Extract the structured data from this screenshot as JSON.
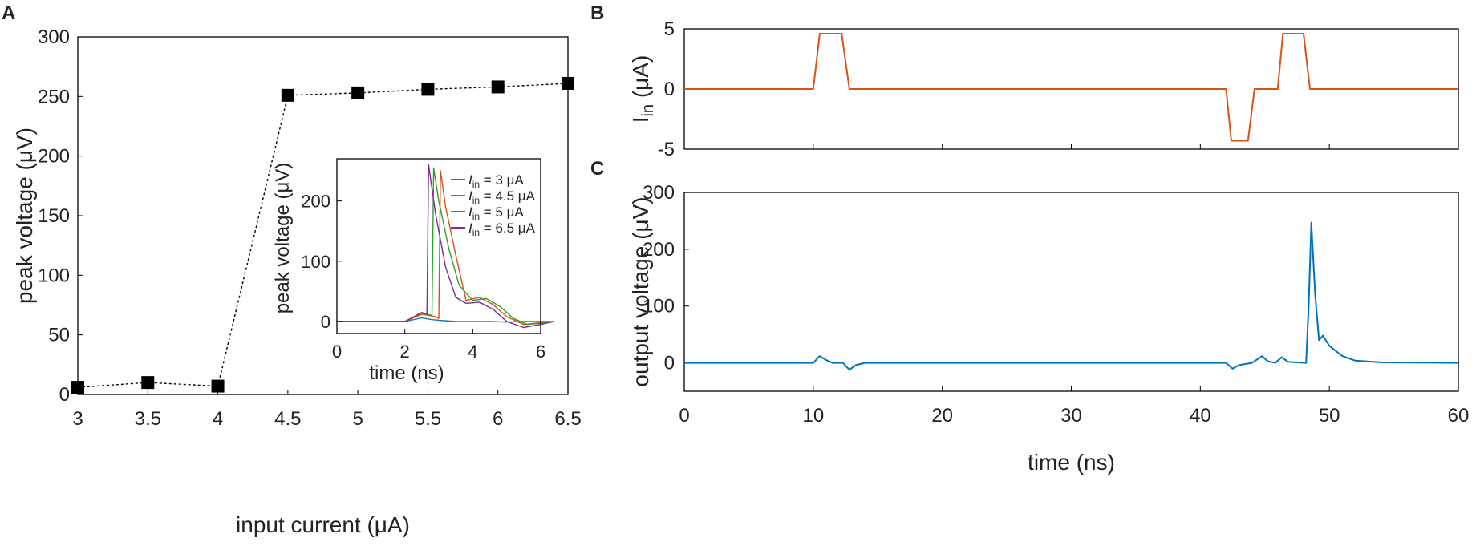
{
  "panels": {
    "A": {
      "letter": "A"
    },
    "B": {
      "letter": "B"
    },
    "C": {
      "letter": "C"
    }
  },
  "chart_data": [
    {
      "id": "A",
      "type": "scatter",
      "xlabel": "input current (μA)",
      "ylabel": "peak voltage (μV)",
      "xlim": [
        3,
        6.5
      ],
      "ylim": [
        0,
        300
      ],
      "xticks": [
        "3",
        "3.5",
        "4",
        "4.5",
        "5",
        "5.5",
        "6",
        "6.5"
      ],
      "yticks": [
        "0",
        "50",
        "100",
        "150",
        "200",
        "250",
        "300"
      ],
      "x": [
        3,
        3.5,
        4,
        4.5,
        5,
        5.5,
        6,
        6.5
      ],
      "y": [
        6,
        10,
        7,
        251,
        253,
        256,
        258,
        261
      ],
      "marker": "square",
      "line": "dotted",
      "color": "#000000"
    },
    {
      "id": "A-inset",
      "type": "line",
      "xlabel": "time (ns)",
      "ylabel": "peak voltage (μV)",
      "xlim": [
        0,
        6
      ],
      "ylim": [
        -20,
        270
      ],
      "xticks": [
        "0",
        "2",
        "4",
        "6"
      ],
      "yticks": [
        "0",
        "100",
        "200"
      ],
      "legend_position": "top-right",
      "series": [
        {
          "name": "3 μA",
          "legend_prefix": "I",
          "legend_sub": "in",
          "legend_suffix": " = 3 μA",
          "color": "#1f77b4",
          "x": [
            0,
            2,
            2.5,
            2.8,
            3.0,
            3.5,
            4.0,
            4.5,
            5.0,
            5.5,
            6.0,
            6.4
          ],
          "y": [
            0,
            0,
            6,
            3,
            2,
            0,
            0,
            0,
            -1,
            0,
            0,
            0
          ]
        },
        {
          "name": "4.5 μA",
          "legend_prefix": "I",
          "legend_sub": "in",
          "legend_suffix": " = 4.5 μA",
          "color": "#d95319",
          "x": [
            0,
            2,
            2.5,
            2.9,
            3.0,
            3.05,
            3.2,
            3.5,
            3.8,
            4.2,
            4.6,
            5.0,
            5.5,
            6.0,
            6.4
          ],
          "y": [
            0,
            0,
            12,
            8,
            5,
            250,
            190,
            110,
            35,
            40,
            28,
            8,
            -5,
            -2,
            0
          ]
        },
        {
          "name": "5 μA",
          "legend_prefix": "I",
          "legend_sub": "in",
          "legend_suffix": " = 5 μA",
          "color": "#2ca02c",
          "x": [
            0,
            2,
            2.5,
            2.8,
            2.85,
            3.0,
            3.3,
            3.6,
            4.0,
            4.4,
            4.8,
            5.2,
            5.6,
            6.0,
            6.4
          ],
          "y": [
            0,
            0,
            14,
            10,
            255,
            200,
            120,
            60,
            35,
            38,
            25,
            5,
            -5,
            -3,
            0
          ]
        },
        {
          "name": "6.5 μA",
          "legend_prefix": "I",
          "legend_sub": "in",
          "legend_suffix": " = 6.5 μA",
          "color": "#7e2f8e",
          "x": [
            0,
            2,
            2.5,
            2.65,
            2.7,
            2.9,
            3.2,
            3.5,
            3.8,
            4.2,
            4.6,
            5.0,
            5.5,
            6.0,
            6.4
          ],
          "y": [
            0,
            0,
            15,
            12,
            260,
            180,
            90,
            40,
            30,
            32,
            20,
            0,
            -10,
            -5,
            0
          ]
        }
      ]
    },
    {
      "id": "B",
      "type": "line",
      "xlabel": "",
      "ylabel_main": "I",
      "ylabel_sub": "in",
      "ylabel_unit": " (μA)",
      "xlim": [
        0,
        60
      ],
      "ylim": [
        -5,
        5
      ],
      "yticks": [
        "5",
        "0",
        "-5"
      ],
      "series": [
        {
          "name": "I_in",
          "color": "#d95319",
          "x": [
            0,
            10,
            10.5,
            12.2,
            12.8,
            42.0,
            42.4,
            43.7,
            44.2,
            44.6,
            45.7,
            46.0,
            46.4,
            48.0,
            48.5,
            60
          ],
          "y": [
            0,
            0,
            4.6,
            4.6,
            0,
            0,
            -4.3,
            -4.3,
            0,
            0,
            0,
            0,
            4.6,
            4.6,
            0,
            0
          ]
        }
      ]
    },
    {
      "id": "C",
      "type": "line",
      "xlabel": "time (ns)",
      "ylabel": "output voltage (μV)",
      "xlim": [
        0,
        60
      ],
      "ylim": [
        -50,
        300
      ],
      "xticks": [
        "0",
        "10",
        "20",
        "30",
        "40",
        "50",
        "60"
      ],
      "yticks": [
        "0",
        "100",
        "200",
        "300"
      ],
      "series": [
        {
          "name": "output voltage",
          "color": "#0072bd",
          "x": [
            0,
            10,
            10.5,
            11,
            11.5,
            12.3,
            12.8,
            13.3,
            14,
            42,
            42.5,
            43,
            44,
            44.8,
            45.2,
            45.8,
            46.3,
            46.8,
            48.2,
            48.4,
            48.6,
            48.9,
            49.2,
            49.5,
            50,
            51,
            52,
            54,
            60
          ],
          "y": [
            0,
            0,
            12,
            5,
            0,
            0,
            -12,
            -4,
            0,
            0,
            -10,
            -4,
            0,
            12,
            3,
            0,
            10,
            2,
            0,
            100,
            247,
            120,
            40,
            48,
            30,
            12,
            4,
            1,
            0
          ]
        }
      ]
    }
  ]
}
